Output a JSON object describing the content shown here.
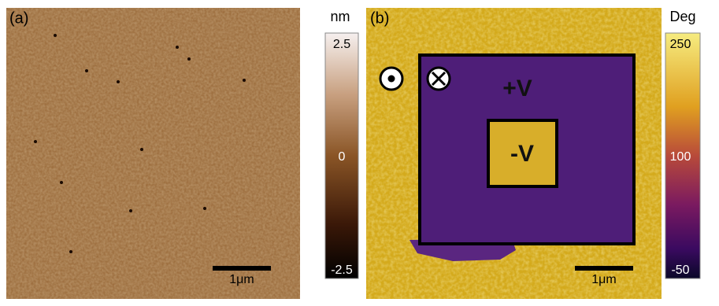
{
  "panels": [
    {
      "label": "(a)",
      "scale_bar": "1μm",
      "colorbar": {
        "unit": "nm",
        "top": "2.5",
        "middle": "0",
        "bottom": "-2.5"
      }
    },
    {
      "label": "(b)",
      "scale_bar": "1μm",
      "colorbar": {
        "unit": "Deg",
        "top": "250",
        "middle": "100",
        "bottom": "-50"
      },
      "annotations": [
        "+V",
        "-V"
      ]
    }
  ]
}
